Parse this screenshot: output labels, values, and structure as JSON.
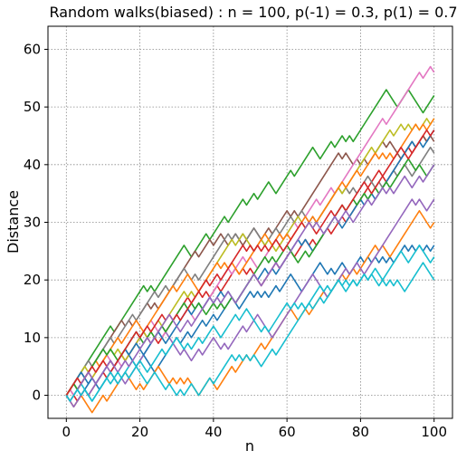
{
  "chart_data": {
    "type": "line",
    "title": "Random walks(biased) : n = 100, p(-1) = 0.3, p(1) = 0.7",
    "xlabel": "n",
    "ylabel": "Distance",
    "xlim": [
      -5,
      105
    ],
    "ylim": [
      -4,
      64
    ],
    "xticks": [
      0,
      20,
      40,
      60,
      80,
      100
    ],
    "yticks": [
      0,
      10,
      20,
      30,
      40,
      50,
      60
    ],
    "grid": true,
    "grid_style": "dotted",
    "n_steps": 100,
    "series": [
      {
        "color": "#1f77b4",
        "end": 28,
        "kp": [
          [
            0,
            0
          ],
          [
            10,
            2
          ],
          [
            20,
            6
          ],
          [
            30,
            10
          ],
          [
            40,
            14
          ],
          [
            50,
            18
          ],
          [
            60,
            20
          ],
          [
            70,
            22
          ],
          [
            80,
            24
          ],
          [
            90,
            25
          ],
          [
            100,
            28
          ]
        ],
        "seed": 11
      },
      {
        "color": "#ff7f0e",
        "end": 32,
        "kp": [
          [
            0,
            0
          ],
          [
            10,
            1
          ],
          [
            20,
            4
          ],
          [
            30,
            5
          ],
          [
            40,
            4
          ],
          [
            50,
            8
          ],
          [
            60,
            16
          ],
          [
            70,
            20
          ],
          [
            80,
            24
          ],
          [
            90,
            28
          ],
          [
            100,
            32
          ]
        ],
        "seed": 12
      },
      {
        "color": "#2ca02c",
        "end": 56,
        "kp": [
          [
            0,
            0
          ],
          [
            10,
            10
          ],
          [
            20,
            18
          ],
          [
            30,
            24
          ],
          [
            40,
            28
          ],
          [
            50,
            35
          ],
          [
            60,
            40
          ],
          [
            70,
            44
          ],
          [
            80,
            48
          ],
          [
            90,
            53
          ],
          [
            100,
            56
          ]
        ],
        "seed": 13
      },
      {
        "color": "#d62728",
        "end": 50,
        "kp": [
          [
            0,
            0
          ],
          [
            10,
            5
          ],
          [
            20,
            11
          ],
          [
            30,
            16
          ],
          [
            40,
            20
          ],
          [
            50,
            25
          ],
          [
            60,
            28
          ],
          [
            70,
            32
          ],
          [
            80,
            38
          ],
          [
            90,
            44
          ],
          [
            100,
            50
          ]
        ],
        "seed": 14
      },
      {
        "color": "#9467bd",
        "end": 38,
        "kp": [
          [
            0,
            0
          ],
          [
            10,
            4
          ],
          [
            20,
            7
          ],
          [
            30,
            9
          ],
          [
            40,
            11
          ],
          [
            50,
            14
          ],
          [
            60,
            16
          ],
          [
            70,
            20
          ],
          [
            80,
            24
          ],
          [
            90,
            33
          ],
          [
            100,
            38
          ]
        ],
        "seed": 15
      },
      {
        "color": "#8c564b",
        "end": 46,
        "kp": [
          [
            0,
            0
          ],
          [
            10,
            8
          ],
          [
            20,
            14
          ],
          [
            30,
            20
          ],
          [
            40,
            27
          ],
          [
            50,
            30
          ],
          [
            60,
            34
          ],
          [
            70,
            40
          ],
          [
            80,
            42
          ],
          [
            90,
            44
          ],
          [
            100,
            46
          ]
        ],
        "seed": 16
      },
      {
        "color": "#e377c2",
        "end": 60,
        "kp": [
          [
            0,
            0
          ],
          [
            10,
            6
          ],
          [
            20,
            11
          ],
          [
            30,
            15
          ],
          [
            40,
            20
          ],
          [
            50,
            26
          ],
          [
            60,
            30
          ],
          [
            70,
            36
          ],
          [
            80,
            44
          ],
          [
            90,
            53
          ],
          [
            100,
            60
          ]
        ],
        "seed": 17
      },
      {
        "color": "#7f7f7f",
        "end": 47,
        "kp": [
          [
            0,
            0
          ],
          [
            10,
            9
          ],
          [
            20,
            16
          ],
          [
            30,
            22
          ],
          [
            40,
            27
          ],
          [
            50,
            31
          ],
          [
            60,
            33
          ],
          [
            70,
            36
          ],
          [
            80,
            40
          ],
          [
            90,
            43
          ],
          [
            100,
            47
          ]
        ],
        "seed": 18
      },
      {
        "color": "#bcbd22",
        "end": 52,
        "kp": [
          [
            0,
            0
          ],
          [
            10,
            6
          ],
          [
            20,
            11
          ],
          [
            30,
            17
          ],
          [
            40,
            24
          ],
          [
            50,
            29
          ],
          [
            60,
            32
          ],
          [
            70,
            36
          ],
          [
            80,
            44
          ],
          [
            90,
            50
          ],
          [
            100,
            52
          ]
        ],
        "seed": 19
      },
      {
        "color": "#17becf",
        "end": 30,
        "kp": [
          [
            0,
            0
          ],
          [
            10,
            2
          ],
          [
            20,
            5
          ],
          [
            30,
            1
          ],
          [
            40,
            4
          ],
          [
            50,
            9
          ],
          [
            60,
            14
          ],
          [
            70,
            20
          ],
          [
            80,
            25
          ],
          [
            90,
            30
          ],
          [
            100,
            30
          ]
        ],
        "seed": 20
      },
      {
        "color": "#1f77b4",
        "end": 48,
        "kp": [
          [
            0,
            0
          ],
          [
            10,
            4
          ],
          [
            20,
            9
          ],
          [
            30,
            13
          ],
          [
            40,
            17
          ],
          [
            50,
            22
          ],
          [
            60,
            26
          ],
          [
            70,
            30
          ],
          [
            80,
            36
          ],
          [
            90,
            42
          ],
          [
            100,
            48
          ]
        ],
        "seed": 21
      },
      {
        "color": "#ff7f0e",
        "end": 51,
        "kp": [
          [
            0,
            0
          ],
          [
            10,
            6
          ],
          [
            20,
            12
          ],
          [
            30,
            18
          ],
          [
            40,
            23
          ],
          [
            50,
            26
          ],
          [
            60,
            30
          ],
          [
            70,
            35
          ],
          [
            80,
            41
          ],
          [
            90,
            45
          ],
          [
            100,
            51
          ]
        ],
        "seed": 22
      },
      {
        "color": "#2ca02c",
        "end": 45,
        "kp": [
          [
            0,
            0
          ],
          [
            10,
            8
          ],
          [
            20,
            10
          ],
          [
            30,
            15
          ],
          [
            40,
            18
          ],
          [
            50,
            22
          ],
          [
            60,
            28
          ],
          [
            70,
            31
          ],
          [
            80,
            37
          ],
          [
            90,
            42
          ],
          [
            100,
            45
          ]
        ],
        "seed": 23
      },
      {
        "color": "#d62728",
        "end": 49,
        "kp": [
          [
            0,
            0
          ],
          [
            10,
            7
          ],
          [
            20,
            12
          ],
          [
            30,
            16
          ],
          [
            40,
            22
          ],
          [
            50,
            28
          ],
          [
            60,
            27
          ],
          [
            70,
            31
          ],
          [
            80,
            38
          ],
          [
            90,
            44
          ],
          [
            100,
            49
          ]
        ],
        "seed": 24
      },
      {
        "color": "#9467bd",
        "end": 44,
        "kp": [
          [
            0,
            0
          ],
          [
            10,
            5
          ],
          [
            20,
            9
          ],
          [
            30,
            14
          ],
          [
            40,
            18
          ],
          [
            50,
            22
          ],
          [
            60,
            26
          ],
          [
            70,
            31
          ],
          [
            80,
            35
          ],
          [
            90,
            40
          ],
          [
            100,
            44
          ]
        ],
        "seed": 25
      },
      {
        "color": "#17becf",
        "end": 28,
        "kp": [
          [
            0,
            0
          ],
          [
            10,
            3
          ],
          [
            20,
            8
          ],
          [
            30,
            12
          ],
          [
            40,
            15
          ],
          [
            50,
            18
          ],
          [
            60,
            20
          ],
          [
            70,
            23
          ],
          [
            80,
            26
          ],
          [
            90,
            27
          ],
          [
            100,
            28
          ]
        ],
        "seed": 26
      }
    ]
  }
}
